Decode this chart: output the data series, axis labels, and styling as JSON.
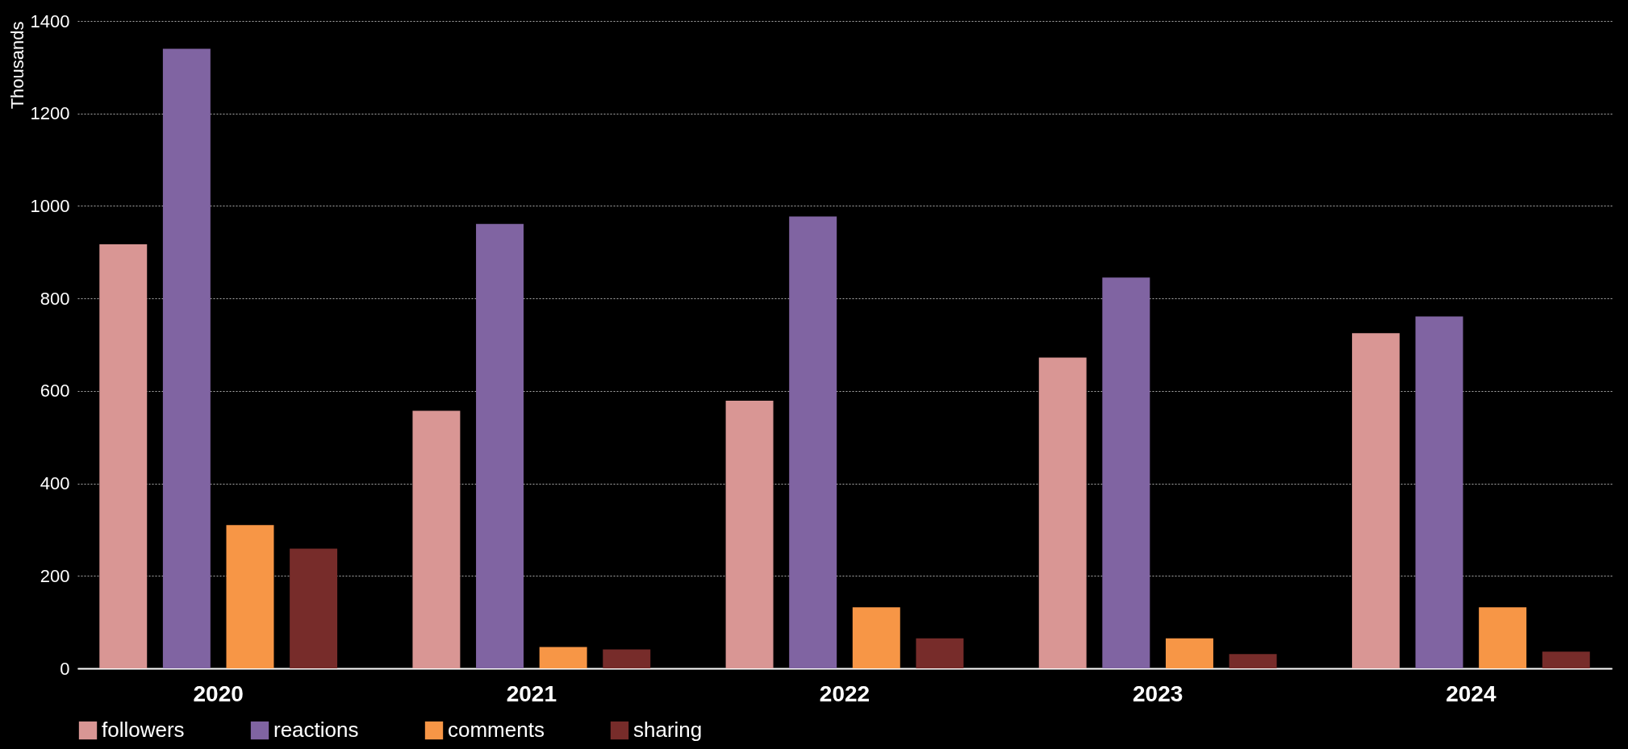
{
  "chart_data": {
    "type": "bar",
    "ylabel": "Thousands",
    "categories": [
      "2020",
      "2021",
      "2022",
      "2023",
      "2024"
    ],
    "series": [
      {
        "name": "followers",
        "color": "#d99694",
        "values": [
          917,
          557,
          579,
          672,
          725
        ]
      },
      {
        "name": "reactions",
        "color": "#8064a2",
        "values": [
          1340,
          961,
          977,
          845,
          761
        ]
      },
      {
        "name": "comments",
        "color": "#f79646",
        "values": [
          310,
          46,
          132,
          65,
          132
        ]
      },
      {
        "name": "sharing",
        "color": "#772c2a",
        "values": [
          259,
          41,
          65,
          31,
          36
        ]
      }
    ],
    "ylim": [
      0,
      1400
    ],
    "yticks": [
      0,
      200,
      400,
      600,
      800,
      1000,
      1200,
      1400
    ],
    "grid": "y",
    "legend": "bottom"
  }
}
